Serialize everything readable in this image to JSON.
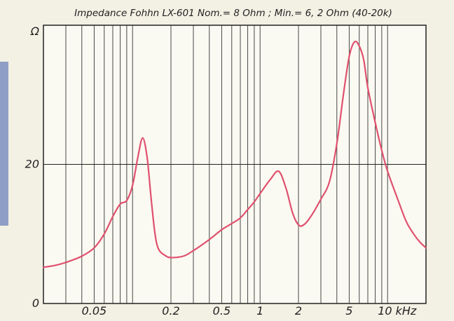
{
  "chart_data": {
    "type": "line",
    "title": "Impedance Fohhn LX-601 Nom.= 8 Ohm ; Min.= 6, 2 Ohm (40-20k)",
    "y_unit_label": "Ω",
    "x_scale": "log",
    "xlim_khz": [
      0.02,
      20
    ],
    "ylim": [
      0,
      40
    ],
    "x_tick_labels": [
      {
        "value": 0.05,
        "text": "0.05"
      },
      {
        "value": 0.2,
        "text": "0.2"
      },
      {
        "value": 0.5,
        "text": "0.5"
      },
      {
        "value": 1,
        "text": "1"
      },
      {
        "value": 2,
        "text": "2"
      },
      {
        "value": 5,
        "text": "5"
      },
      {
        "value": 10,
        "text": "10 kHz"
      }
    ],
    "y_tick_labels": [
      {
        "value": 0,
        "text": "0"
      },
      {
        "value": 20,
        "text": "20"
      }
    ],
    "y_gridlines": [
      20
    ],
    "vertical_gridlines_khz": [
      0.03,
      0.04,
      0.05,
      0.06,
      0.07,
      0.08,
      0.09,
      0.1,
      0.2,
      0.3,
      0.4,
      0.5,
      0.6,
      0.7,
      0.8,
      0.9,
      1,
      2,
      3,
      4,
      5,
      6,
      7,
      8,
      9,
      10
    ],
    "grid": true,
    "series": [
      {
        "color": "#e0506e",
        "points": [
          [
            0.02,
            5.2
          ],
          [
            0.025,
            5.5
          ],
          [
            0.03,
            5.9
          ],
          [
            0.04,
            6.8
          ],
          [
            0.05,
            8.0
          ],
          [
            0.06,
            10.0
          ],
          [
            0.07,
            12.5
          ],
          [
            0.08,
            14.3
          ],
          [
            0.09,
            14.8
          ],
          [
            0.1,
            17.0
          ],
          [
            0.11,
            21.0
          ],
          [
            0.12,
            23.8
          ],
          [
            0.13,
            21.0
          ],
          [
            0.14,
            15.0
          ],
          [
            0.15,
            10.0
          ],
          [
            0.16,
            7.8
          ],
          [
            0.18,
            6.9
          ],
          [
            0.2,
            6.6
          ],
          [
            0.25,
            6.8
          ],
          [
            0.3,
            7.6
          ],
          [
            0.4,
            9.2
          ],
          [
            0.5,
            10.6
          ],
          [
            0.6,
            11.5
          ],
          [
            0.7,
            12.3
          ],
          [
            0.8,
            13.5
          ],
          [
            0.9,
            14.6
          ],
          [
            1.0,
            15.8
          ],
          [
            1.2,
            17.8
          ],
          [
            1.4,
            19.0
          ],
          [
            1.6,
            16.5
          ],
          [
            1.8,
            13.0
          ],
          [
            2.0,
            11.3
          ],
          [
            2.2,
            11.3
          ],
          [
            2.5,
            12.5
          ],
          [
            3.0,
            15.0
          ],
          [
            3.5,
            17.5
          ],
          [
            4.0,
            23.0
          ],
          [
            4.5,
            30.0
          ],
          [
            5.0,
            35.5
          ],
          [
            5.5,
            37.6
          ],
          [
            6.0,
            37.0
          ],
          [
            6.5,
            35.0
          ],
          [
            7.0,
            31.0
          ],
          [
            8.0,
            26.0
          ],
          [
            9.0,
            22.0
          ],
          [
            10.0,
            19.0
          ],
          [
            12.0,
            15.0
          ],
          [
            14.0,
            11.8
          ],
          [
            16.0,
            10.0
          ],
          [
            18.0,
            8.8
          ],
          [
            20.0,
            8.0
          ]
        ]
      }
    ]
  }
}
